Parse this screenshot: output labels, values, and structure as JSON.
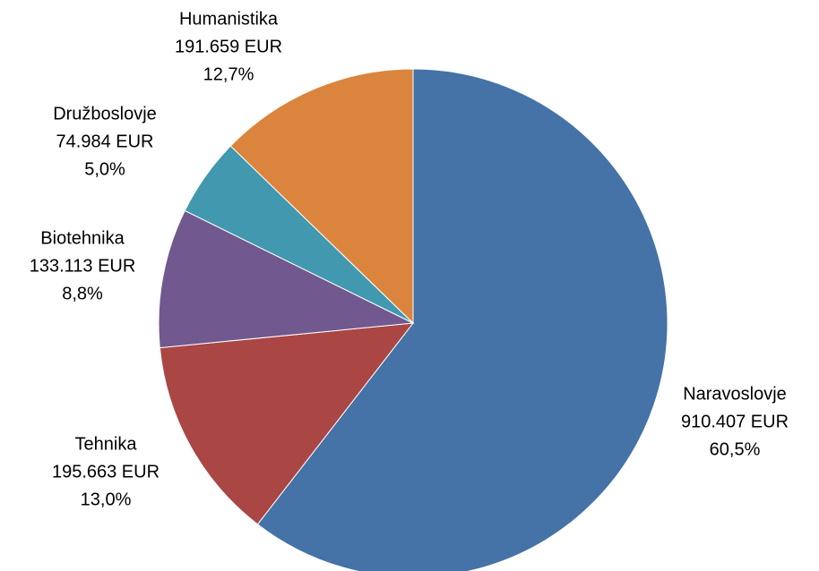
{
  "chart_data": {
    "type": "pie",
    "categories": [
      "Naravoslovje",
      "Tehnika",
      "Biotehnika",
      "Družboslovje",
      "Humanistika"
    ],
    "values": [
      910407,
      195663,
      133113,
      74984,
      191659
    ],
    "value_labels": [
      "910.407 EUR",
      "195.663 EUR",
      "133.113 EUR",
      "74.984 EUR",
      "191.659 EUR"
    ],
    "percentages": [
      60.5,
      13.0,
      8.8,
      5.0,
      12.7
    ],
    "percentage_labels": [
      "60,5%",
      "13,0%",
      "8,8%",
      "5,0%",
      "12,7%"
    ],
    "colors": [
      "#4572a7",
      "#aa4643",
      "#71588f",
      "#4198af",
      "#db843d"
    ]
  }
}
